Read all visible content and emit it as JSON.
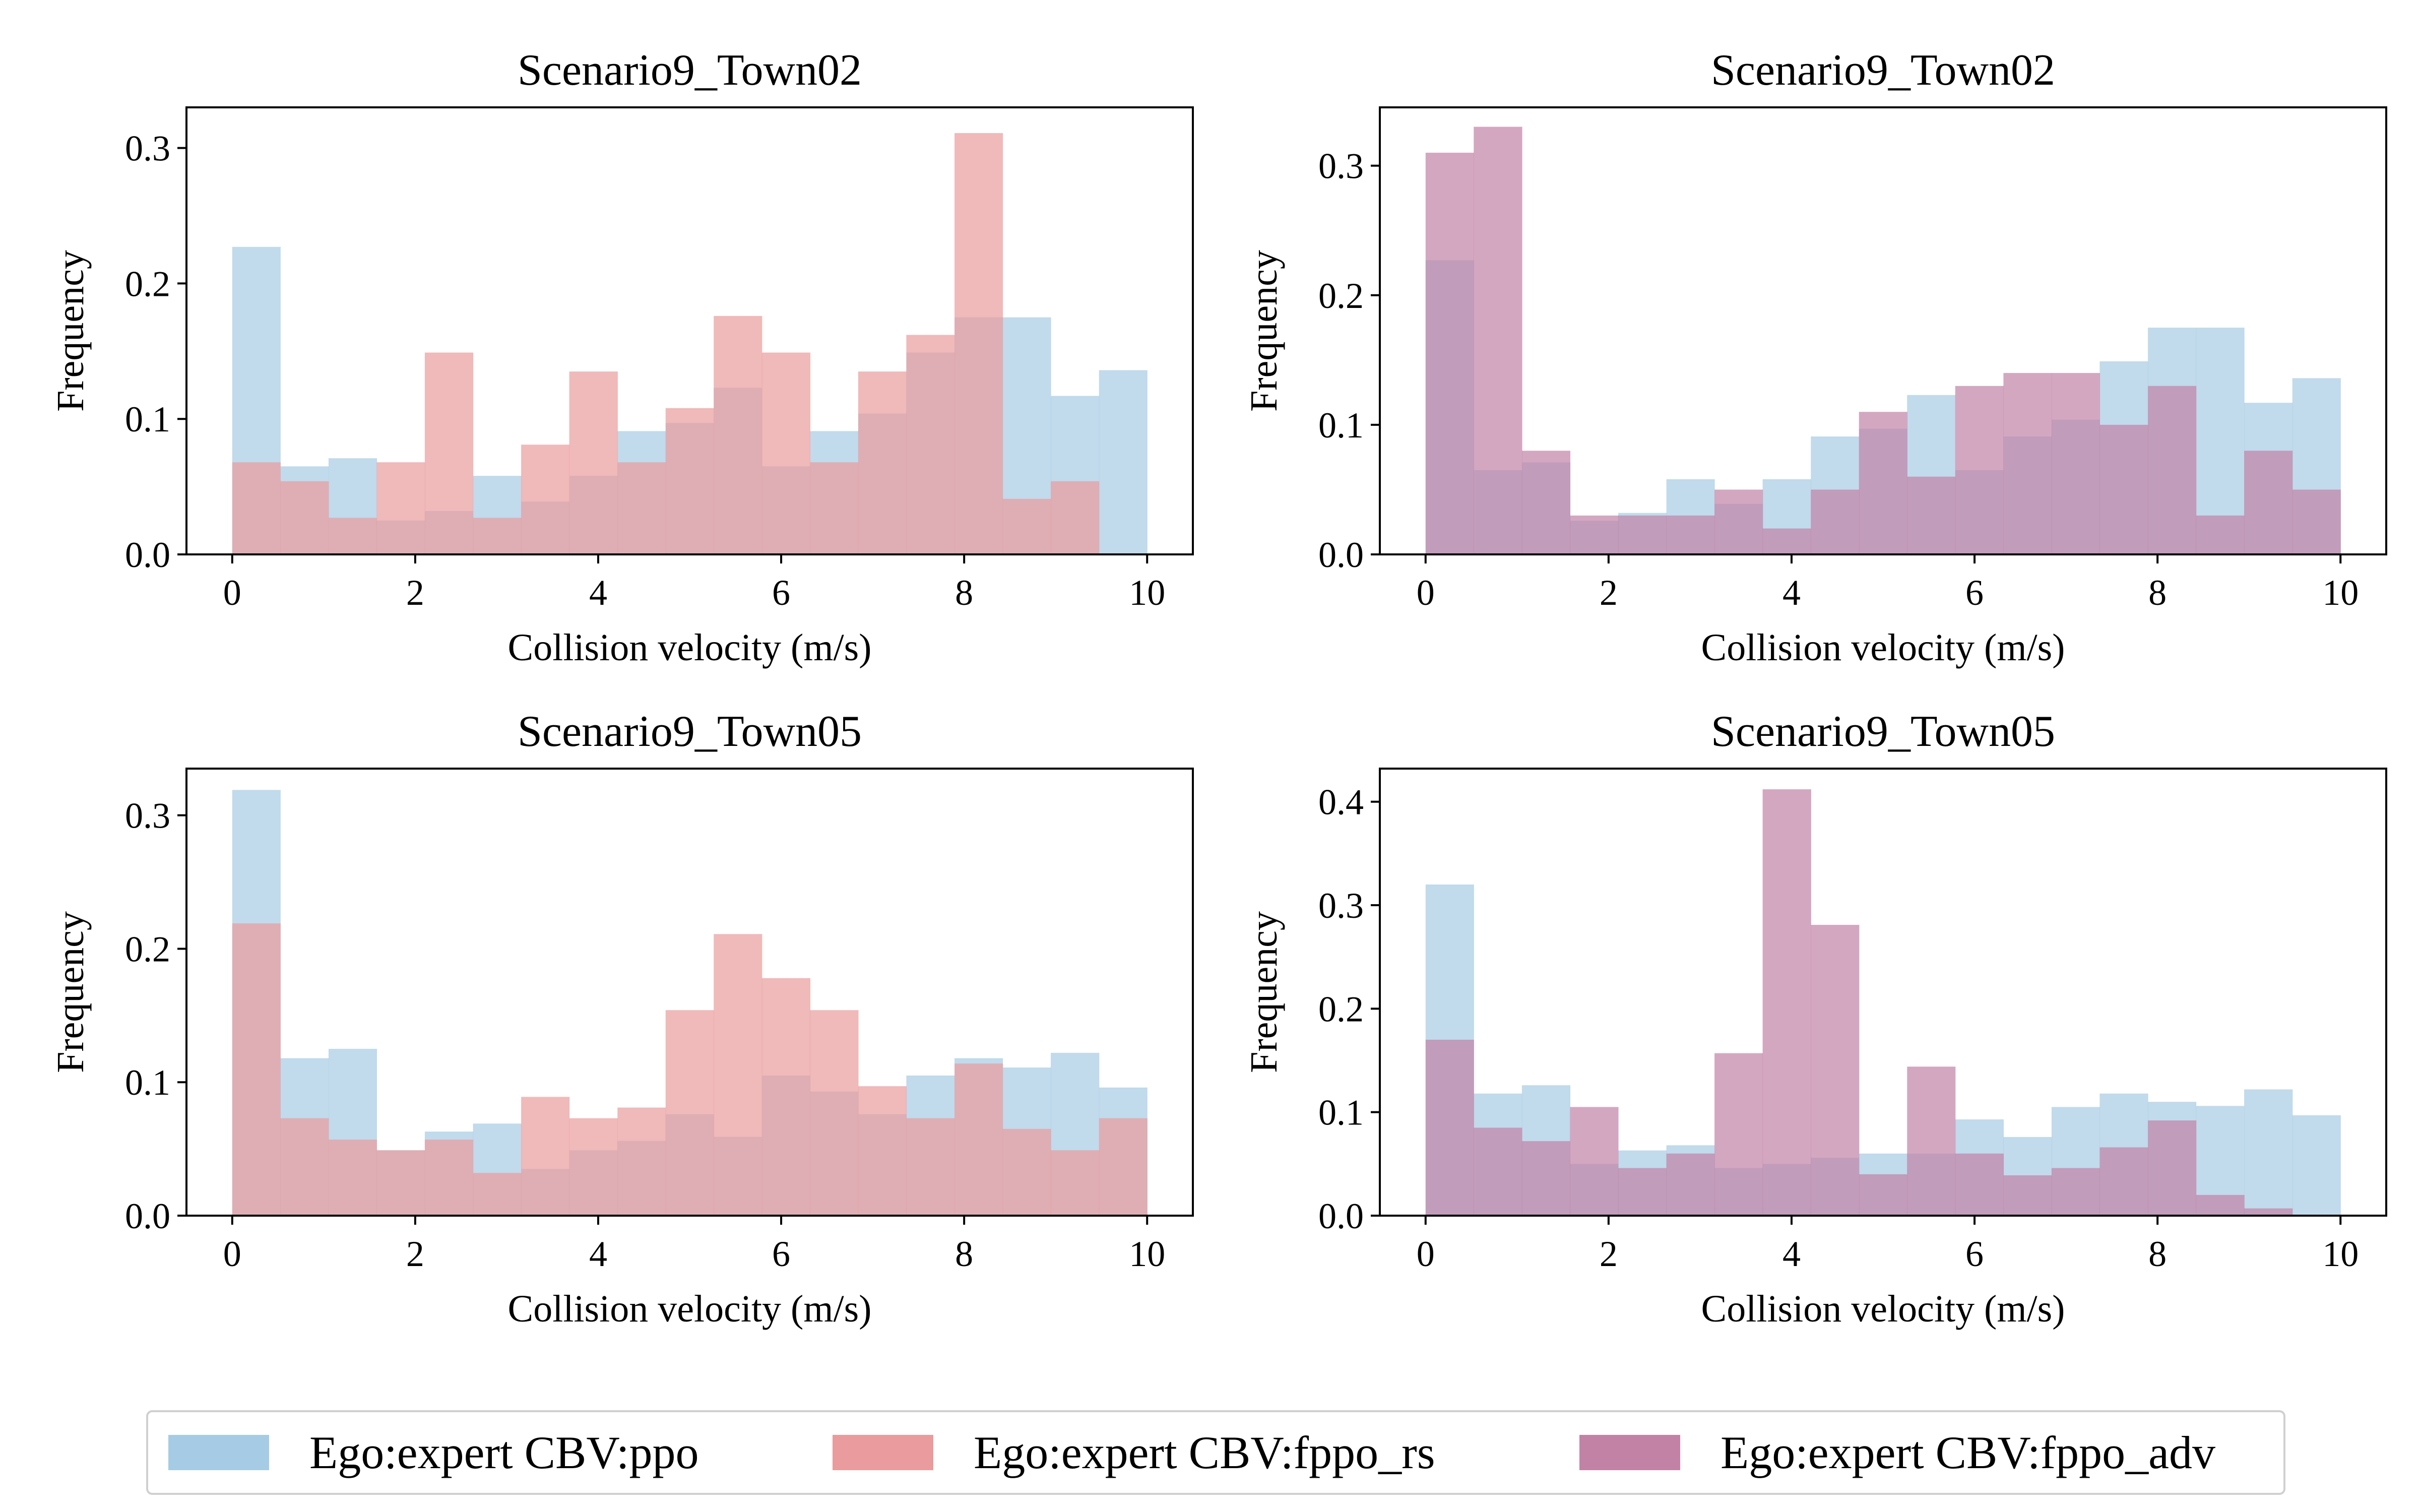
{
  "legend": [
    {
      "label": "Ego:expert CBV:ppo",
      "color": "#a6cbe4"
    },
    {
      "label": "Ego:expert CBV:fppo_rs",
      "color": "#e99b9d"
    },
    {
      "label": "Ego:expert CBV:fppo_adv",
      "color": "#c282a6"
    }
  ],
  "chart_data": [
    {
      "type": "histogram",
      "title": "Scenario9_Town02",
      "xlabel": "Collision velocity (m/s)",
      "ylabel": "Frequency",
      "xlim": [
        -0.5,
        10.5
      ],
      "ylim": [
        0,
        0.33
      ],
      "xticks": [
        0,
        2,
        4,
        6,
        8,
        10
      ],
      "yticks": [
        0.0,
        0.1,
        0.2,
        0.3
      ],
      "bin_edges": [
        0,
        0.526,
        1.053,
        1.579,
        2.105,
        2.632,
        3.158,
        3.684,
        4.211,
        4.737,
        5.263,
        5.789,
        6.316,
        6.842,
        7.368,
        7.895,
        8.421,
        8.947,
        9.474,
        10
      ],
      "series": [
        {
          "name": "Ego:expert CBV:ppo",
          "color": "#a6cbe4",
          "values": [
            0.227,
            0.065,
            0.071,
            0.025,
            0.032,
            0.058,
            0.039,
            0.058,
            0.091,
            0.097,
            0.123,
            0.065,
            0.091,
            0.104,
            0.149,
            0.175,
            0.175,
            0.117,
            0.136
          ]
        },
        {
          "name": "Ego:expert CBV:fppo_rs",
          "color": "#e99b9d",
          "values": [
            0.068,
            0.054,
            0.027,
            0.068,
            0.149,
            0.027,
            0.081,
            0.135,
            0.068,
            0.108,
            0.176,
            0.149,
            0.068,
            0.135,
            0.162,
            0.311,
            0.041,
            0.054,
            0
          ]
        }
      ]
    },
    {
      "type": "histogram",
      "title": "Scenario9_Town02",
      "xlabel": "Collision velocity (m/s)",
      "ylabel": "Frequency",
      "xlim": [
        -0.5,
        10.5
      ],
      "ylim": [
        0,
        0.345
      ],
      "xticks": [
        0,
        2,
        4,
        6,
        8,
        10
      ],
      "yticks": [
        0.0,
        0.1,
        0.2,
        0.3
      ],
      "bin_edges": [
        0,
        0.526,
        1.053,
        1.579,
        2.105,
        2.632,
        3.158,
        3.684,
        4.211,
        4.737,
        5.263,
        5.789,
        6.316,
        6.842,
        7.368,
        7.895,
        8.421,
        8.947,
        9.474,
        10
      ],
      "series": [
        {
          "name": "Ego:expert CBV:ppo",
          "color": "#a6cbe4",
          "values": [
            0.227,
            0.065,
            0.071,
            0.026,
            0.032,
            0.058,
            0.039,
            0.058,
            0.091,
            0.097,
            0.123,
            0.065,
            0.091,
            0.104,
            0.149,
            0.175,
            0.175,
            0.117,
            0.136
          ]
        },
        {
          "name": "Ego:expert CBV:fppo_adv",
          "color": "#c282a6",
          "values": [
            0.31,
            0.33,
            0.08,
            0.03,
            0.03,
            0.03,
            0.05,
            0.02,
            0.05,
            0.11,
            0.06,
            0.13,
            0.14,
            0.14,
            0.1,
            0.13,
            0.03,
            0.08,
            0.05
          ]
        }
      ]
    },
    {
      "type": "histogram",
      "title": "Scenario9_Town05",
      "xlabel": "Collision velocity (m/s)",
      "ylabel": "Frequency",
      "xlim": [
        -0.5,
        10.5
      ],
      "ylim": [
        0,
        0.335
      ],
      "xticks": [
        0,
        2,
        4,
        6,
        8,
        10
      ],
      "yticks": [
        0.0,
        0.1,
        0.2,
        0.3
      ],
      "bin_edges": [
        0,
        0.526,
        1.053,
        1.579,
        2.105,
        2.632,
        3.158,
        3.684,
        4.211,
        4.737,
        5.263,
        5.789,
        6.316,
        6.842,
        7.368,
        7.895,
        8.421,
        8.947,
        9.474,
        10
      ],
      "series": [
        {
          "name": "Ego:expert CBV:ppo",
          "color": "#a6cbe4",
          "values": [
            0.319,
            0.118,
            0.125,
            0.049,
            0.063,
            0.069,
            0.035,
            0.049,
            0.056,
            0.076,
            0.059,
            0.105,
            0.093,
            0.076,
            0.105,
            0.118,
            0.111,
            0.122,
            0.096
          ]
        },
        {
          "name": "Ego:expert CBV:fppo_rs",
          "color": "#e99b9d",
          "values": [
            0.219,
            0.073,
            0.057,
            0.049,
            0.057,
            0.032,
            0.089,
            0.073,
            0.081,
            0.154,
            0.211,
            0.178,
            0.154,
            0.097,
            0.073,
            0.114,
            0.065,
            0.049,
            0.073
          ]
        }
      ]
    },
    {
      "type": "histogram",
      "title": "Scenario9_Town05",
      "xlabel": "Collision velocity (m/s)",
      "ylabel": "Frequency",
      "xlim": [
        -0.5,
        10.5
      ],
      "ylim": [
        0,
        0.432
      ],
      "xticks": [
        0,
        2,
        4,
        6,
        8,
        10
      ],
      "yticks": [
        0.0,
        0.1,
        0.2,
        0.3,
        0.4
      ],
      "bin_edges": [
        0,
        0.526,
        1.053,
        1.579,
        2.105,
        2.632,
        3.158,
        3.684,
        4.211,
        4.737,
        5.263,
        5.789,
        6.316,
        6.842,
        7.368,
        7.895,
        8.421,
        8.947,
        9.474,
        10
      ],
      "series": [
        {
          "name": "Ego:expert CBV:ppo",
          "color": "#a6cbe4",
          "values": [
            0.32,
            0.118,
            0.126,
            0.05,
            0.063,
            0.068,
            0.046,
            0.05,
            0.056,
            0.06,
            0.06,
            0.093,
            0.076,
            0.105,
            0.118,
            0.11,
            0.106,
            0.122,
            0.097
          ]
        },
        {
          "name": "Ego:expert CBV:fppo_adv",
          "color": "#c282a6",
          "values": [
            0.17,
            0.085,
            0.072,
            0.105,
            0.046,
            0.06,
            0.157,
            0.412,
            0.281,
            0.04,
            0.144,
            0.06,
            0.039,
            0.046,
            0.066,
            0.092,
            0.02,
            0.007,
            0
          ]
        }
      ]
    }
  ]
}
